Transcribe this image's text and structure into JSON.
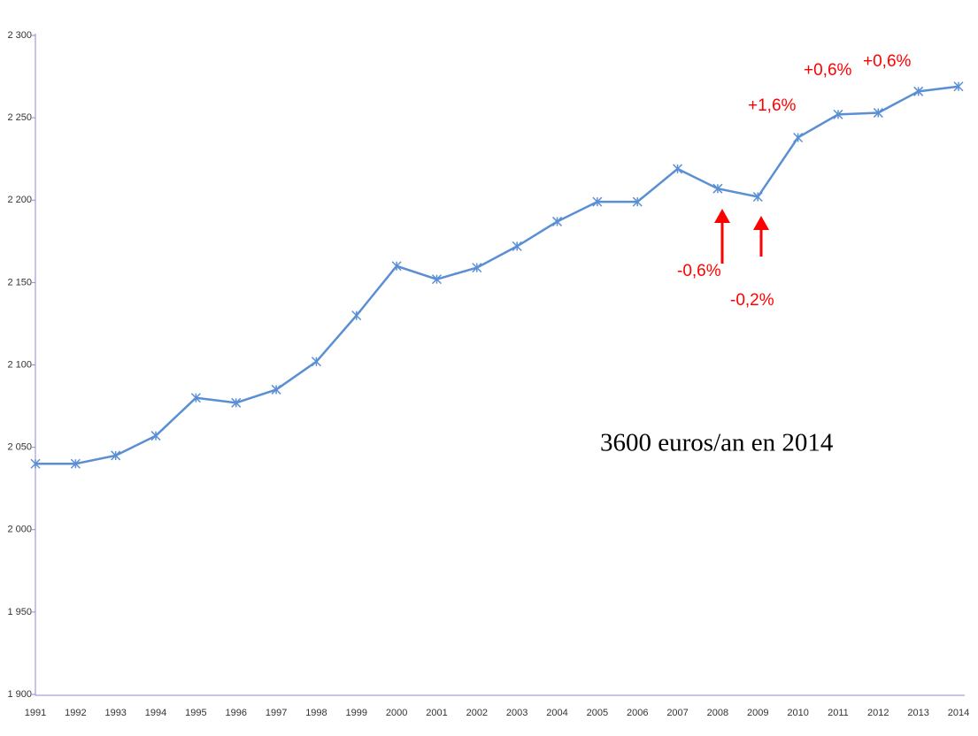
{
  "chart_data": {
    "type": "line",
    "categories": [
      "1991",
      "1992",
      "1993",
      "1994",
      "1995",
      "1996",
      "1997",
      "1998",
      "1999",
      "2000",
      "2001",
      "2002",
      "2003",
      "2004",
      "2005",
      "2006",
      "2007",
      "2008",
      "2009",
      "2010",
      "2011",
      "2012",
      "2013",
      "2014"
    ],
    "series": [
      {
        "name": null,
        "color": "#5b8fd4",
        "values": [
          2040,
          2040,
          2045,
          2057,
          2080,
          2077,
          2085,
          2102,
          2130,
          2160,
          2152,
          2159,
          2172,
          2187,
          2199,
          2199,
          2219,
          2207,
          2202,
          2238,
          2252,
          2253,
          2266,
          2269
        ]
      }
    ],
    "ylim": [
      1900,
      2300
    ],
    "yticks": [
      {
        "value": 1900,
        "label": "1 900"
      },
      {
        "value": 1950,
        "label": "1 950"
      },
      {
        "value": 2000,
        "label": "2 000"
      },
      {
        "value": 2050,
        "label": "2 050"
      },
      {
        "value": 2100,
        "label": "2 100"
      },
      {
        "value": 2150,
        "label": "2 150"
      },
      {
        "value": 2200,
        "label": "2 200"
      },
      {
        "value": 2250,
        "label": "2 250"
      },
      {
        "value": 2300,
        "label": "2 300"
      }
    ],
    "grid": false,
    "annotations": [
      "+0,6%",
      "+0,6%",
      "+1,6%",
      "-0,6%",
      "-0,2%",
      "3600 euros/an en 2014"
    ]
  }
}
